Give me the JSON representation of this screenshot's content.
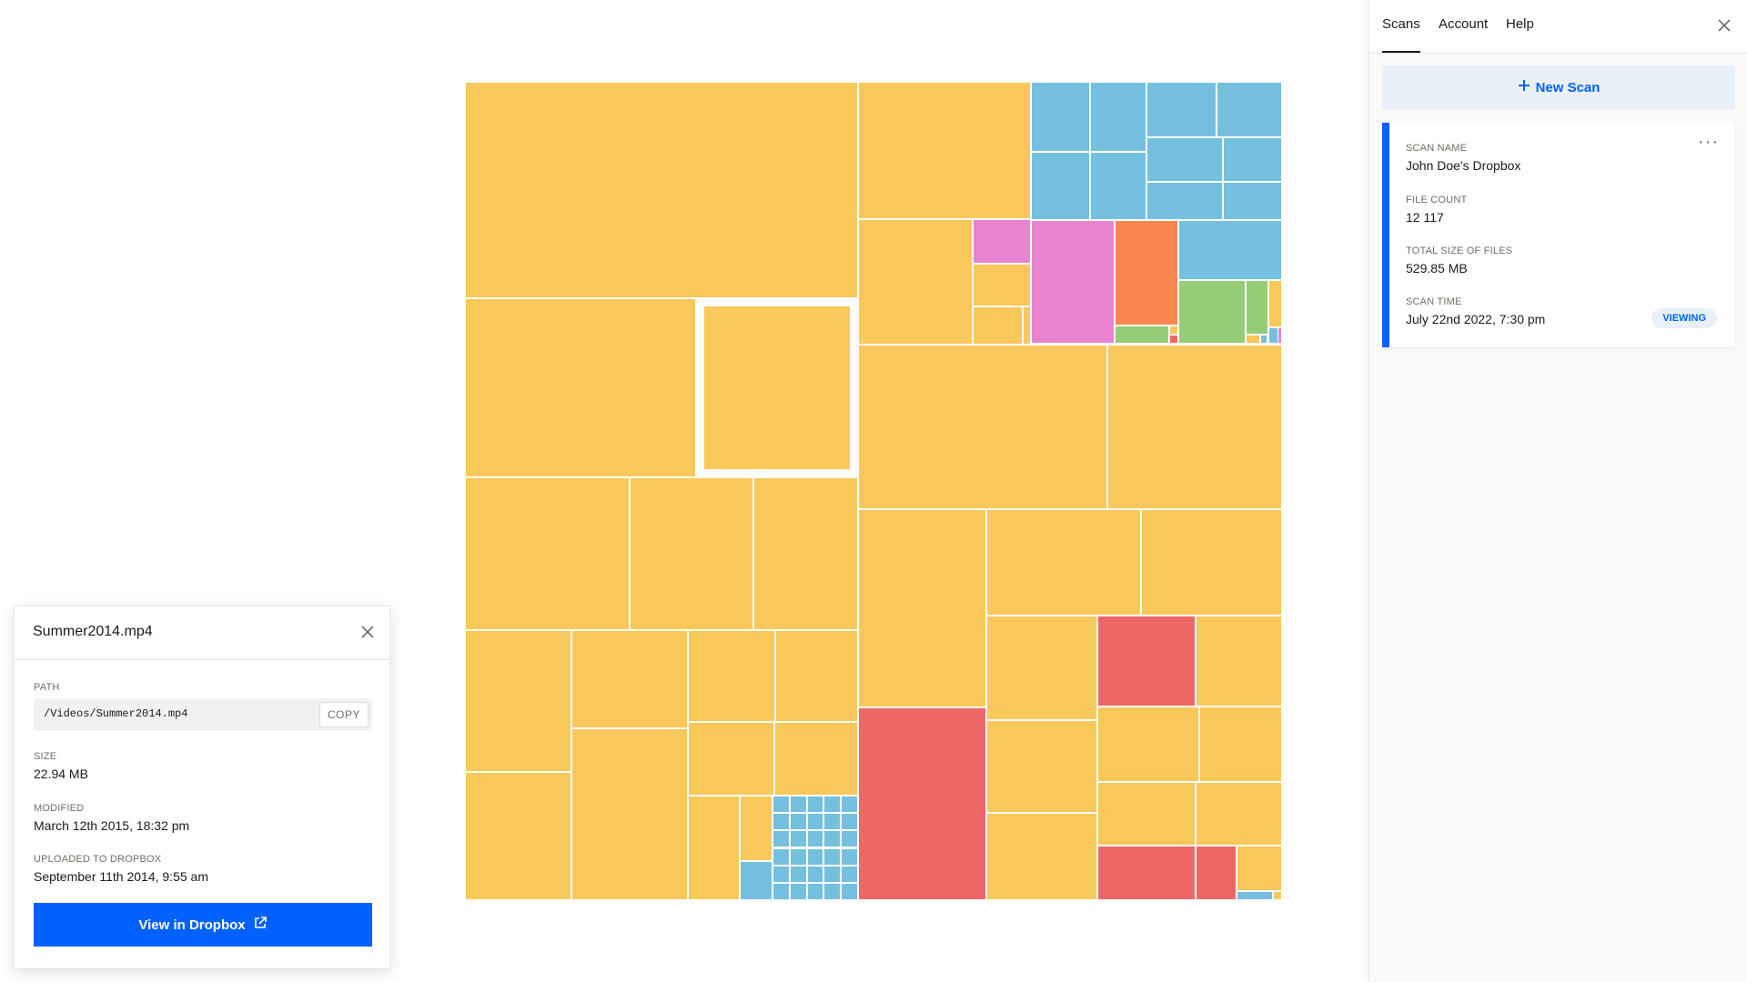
{
  "colors": {
    "folder": "#f8c85b",
    "image": "#75bfdf",
    "video": "#ee6767",
    "audio": "#e884cf",
    "document": "#fb8650",
    "archive": "#95cd77",
    "accent": "#0061fe"
  },
  "icons": {
    "close": "close-icon",
    "plus": "plus-icon",
    "more": "more-horizontal-icon",
    "external": "external-link-icon"
  },
  "tabs": [
    {
      "label": "Scans",
      "active": true
    },
    {
      "label": "Account",
      "active": false
    },
    {
      "label": "Help",
      "active": false
    }
  ],
  "new_scan": {
    "label": "New Scan"
  },
  "scan": {
    "name_label": "SCAN NAME",
    "name": "John Doe's Dropbox",
    "count_label": "FILE COUNT",
    "count": "12 117",
    "size_label": "TOTAL SIZE OF FILES",
    "size": "529.85 MB",
    "time_label": "SCAN TIME",
    "time": "July 22nd 2022, 7:30 pm",
    "status": "VIEWING"
  },
  "file": {
    "name": "Summer2014.mp4",
    "path_label": "PATH",
    "path": "/Videos/Summer2014.mp4",
    "copy_label": "COPY",
    "size_label": "SIZE",
    "size": "22.94 MB",
    "modified_label": "MODIFIED",
    "modified": "March 12th 2015, 18:32 pm",
    "uploaded_label": "UPLOADED TO DROPBOX",
    "uploaded": "September 11th 2014, 9:55 am",
    "view_label": "View in Dropbox"
  }
}
